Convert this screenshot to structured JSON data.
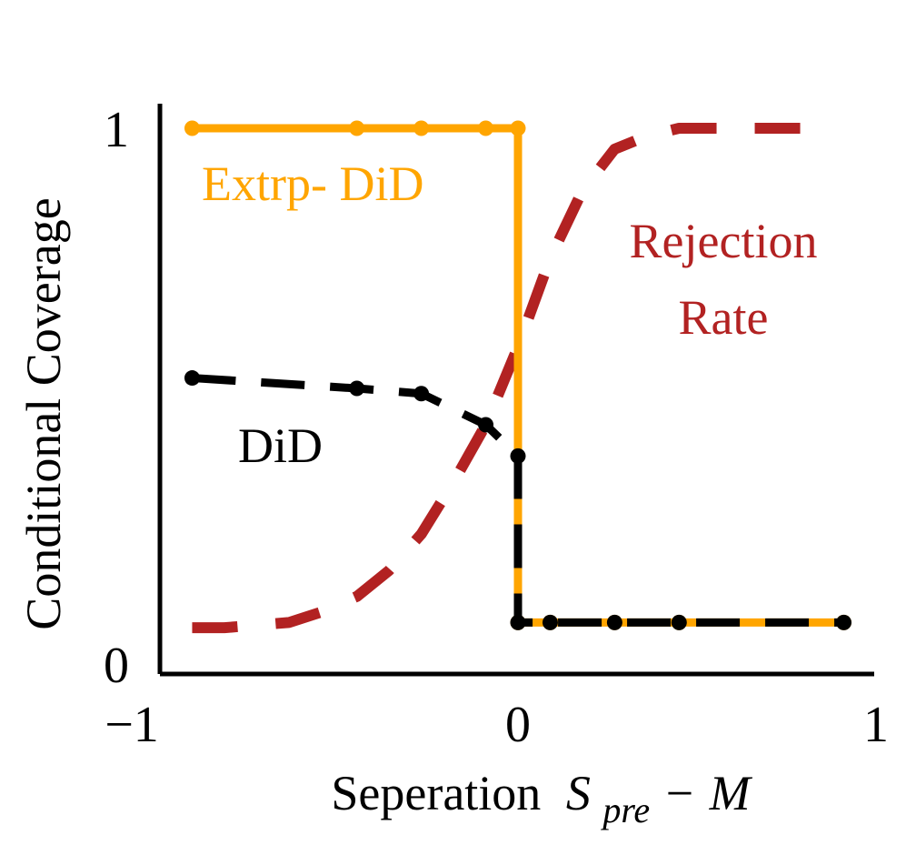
{
  "chart_data": {
    "type": "line",
    "title": "",
    "xlabel": "Seperation",
    "xlabel_math": {
      "base": "S",
      "subscript": "pre",
      "operator": "−",
      "term": "M"
    },
    "ylabel": "Conditional Coverage",
    "xlim": [
      -1,
      1
    ],
    "ylim": [
      0,
      1
    ],
    "x_ticks": [
      {
        "value": -1,
        "label": "−1"
      },
      {
        "value": 0,
        "label": "0"
      },
      {
        "value": 1,
        "label": "1"
      }
    ],
    "y_ticks": [
      {
        "value": 0,
        "label": "0"
      },
      {
        "value": 1,
        "label": "1"
      }
    ],
    "grid": false,
    "legend": "none",
    "series": [
      {
        "name": "Extrp- DiD",
        "color": "#FFA500",
        "style": "solid",
        "markers": true,
        "points": [
          [
            -0.91,
            1.0
          ],
          [
            -0.45,
            1.0
          ],
          [
            -0.27,
            1.0
          ],
          [
            -0.09,
            1.0
          ],
          [
            0.0,
            1.0
          ],
          [
            0.0,
            0.05
          ],
          [
            0.09,
            0.05
          ],
          [
            0.27,
            0.05
          ],
          [
            0.45,
            0.05
          ],
          [
            0.91,
            0.05
          ]
        ]
      },
      {
        "name": "DiD",
        "color": "#000000",
        "style": "dashed",
        "markers": true,
        "points": [
          [
            -0.91,
            0.52
          ],
          [
            -0.45,
            0.5
          ],
          [
            -0.27,
            0.49
          ],
          [
            -0.09,
            0.43
          ],
          [
            0.0,
            0.37
          ],
          [
            0.0,
            0.05
          ],
          [
            0.09,
            0.05
          ],
          [
            0.27,
            0.05
          ],
          [
            0.45,
            0.05
          ],
          [
            0.91,
            0.05
          ]
        ]
      },
      {
        "name": "Rejection Rate",
        "label_lines": [
          "Rejection",
          "Rate"
        ],
        "color": "#B22222",
        "style": "dashed",
        "markers": false,
        "points": [
          [
            -0.91,
            0.04
          ],
          [
            -0.82,
            0.04
          ],
          [
            -0.73,
            0.045
          ],
          [
            -0.64,
            0.05
          ],
          [
            -0.55,
            0.07
          ],
          [
            -0.45,
            0.1
          ],
          [
            -0.36,
            0.15
          ],
          [
            -0.27,
            0.22
          ],
          [
            -0.18,
            0.32
          ],
          [
            -0.09,
            0.43
          ],
          [
            0.0,
            0.58
          ],
          [
            0.09,
            0.75
          ],
          [
            0.18,
            0.88
          ],
          [
            0.27,
            0.96
          ],
          [
            0.36,
            0.985
          ],
          [
            0.45,
            1.0
          ],
          [
            0.64,
            1.0
          ],
          [
            0.82,
            1.0
          ]
        ]
      }
    ]
  }
}
